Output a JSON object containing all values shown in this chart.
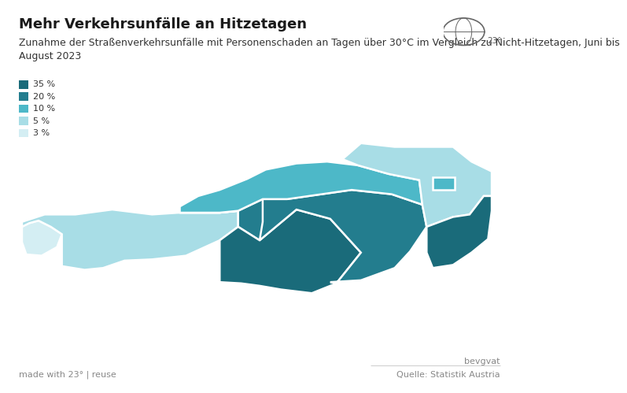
{
  "title": "Mehr Verkehrsunfälle an Hitzetagen",
  "subtitle": "Zunahme der Straßenverkehrsunfälle mit Personenschaden an Tagen über 30°C im Vergleich zu Nicht-Hitzetagen, Juni bis\nAugust 2023",
  "footer_left": "made with 23° | reuse",
  "footer_right": "Quelle: Statistik Austria",
  "footer_brand": "bevgvat",
  "background_color": "#ffffff",
  "legend_values": [
    "35 %",
    "20 %",
    "10 %",
    "5 %",
    "3 %"
  ],
  "legend_colors": [
    "#1a6b7a",
    "#237d8e",
    "#4db8c8",
    "#a8dde6",
    "#d4eef3"
  ],
  "region_data": {
    "Vorarlberg": 3,
    "Tirol": 5,
    "Salzburg": 20,
    "Kaernten": 35,
    "Steiermark": 20,
    "Oberoesterreich": 10,
    "Niederoesterreich": 5,
    "Wien": 10,
    "Burgenland": 35
  },
  "value_to_color": {
    "35": "#1a6b7a",
    "20": "#237d8e",
    "10": "#4db8c8",
    "5": "#a8dde6",
    "3": "#d4eef3"
  },
  "title_fontsize": 13,
  "subtitle_fontsize": 9,
  "footer_fontsize": 8,
  "xlim": [
    9.3,
    17.5
  ],
  "ylim": [
    46.2,
    49.1
  ]
}
